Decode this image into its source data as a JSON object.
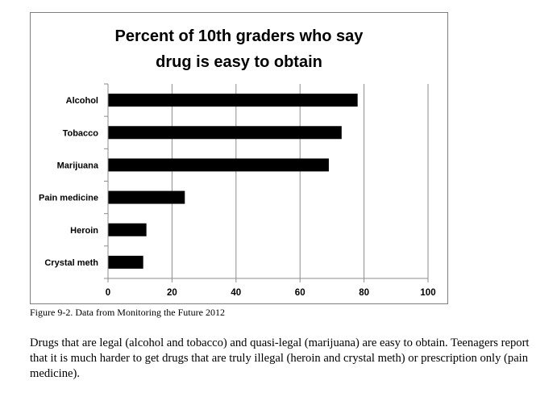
{
  "chart_data": {
    "type": "bar",
    "orientation": "horizontal",
    "title_lines": [
      "Percent of 10th graders who say",
      "drug is easy to obtain"
    ],
    "categories": [
      "Alcohol",
      "Tobacco",
      "Marijuana",
      "Pain medicine",
      "Heroin",
      "Crystal meth"
    ],
    "values": [
      78,
      73,
      69,
      24,
      12,
      11
    ],
    "xlim": [
      0,
      100
    ],
    "xticks": [
      "0",
      "20",
      "40",
      "60",
      "80",
      "100"
    ],
    "grid": "vertical",
    "bar_color": "#000000",
    "xlabel": "",
    "ylabel": ""
  },
  "caption": "Figure 9-2. Data from Monitoring the Future 2012",
  "body_text": "Drugs that are legal (alcohol and tobacco) and quasi-legal (marijuana) are easy to obtain. Teenagers report that it is much harder to get drugs that are truly illegal (heroin and crystal meth) or prescription only (pain medicine)."
}
